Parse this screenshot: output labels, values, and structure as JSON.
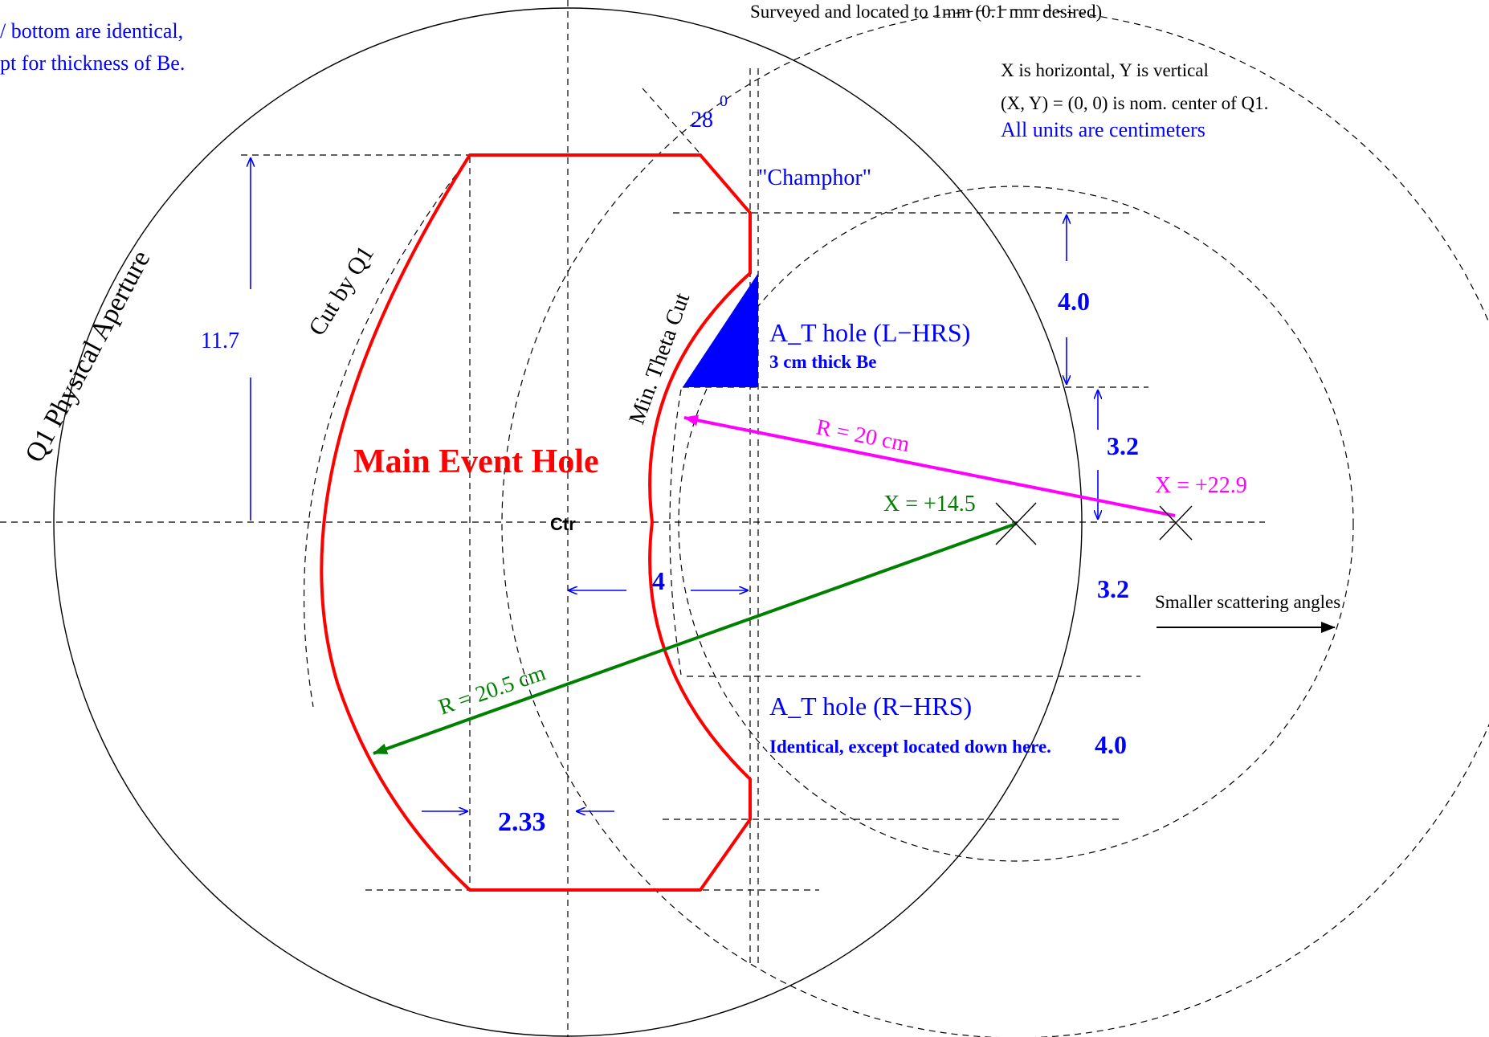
{
  "colors": {
    "outline": "#ff0000",
    "annotation_blue": "#0000ff",
    "magenta": "#ff00ff",
    "green": "#008000",
    "black": "#000000"
  },
  "texts": {
    "top_left_note_line1": "/ bottom are identical,",
    "top_left_note_line2": "pt for thickness of Be.",
    "surveyed": "Surveyed and located to 1mm  (0.1 mm desired)",
    "axes_note": "X is horizontal,  Y is vertical",
    "origin_note": "(X, Y)  = (0, 0)  is nom. center of Q1.",
    "units_note": "All units are  centimeters",
    "aperture_label": "Q1  Physical Aperture",
    "cut_q1_label": "Cut  by Q1",
    "min_theta_label": "Min. Theta Cut",
    "angle_value": "28",
    "angle_superscript": "0",
    "champhor": "\"Champhor\"",
    "at_hole_l": "A_T hole (L−HRS)",
    "be_thickness": "3 cm thick Be",
    "at_hole_r": "A_T hole (R−HRS)",
    "identical_note": "Identical, except located down here.",
    "main_hole": "Main  Event  Hole",
    "ctr": "Ctr",
    "dim_11_7": "11.7",
    "dim_4_0_top": "4.0",
    "dim_3_2_upper": "3.2",
    "dim_3_2_lower": "3.2",
    "dim_4_0_bottom": "4.0",
    "dim_4": "4",
    "dim_2_33": "2.33",
    "radius_20": "R = 20 cm",
    "radius_20_5": "R = 20.5 cm",
    "x_14_5": "X = +14.5",
    "x_22_9": "X = +22.9",
    "scattering_note": "Smaller scattering angles"
  }
}
